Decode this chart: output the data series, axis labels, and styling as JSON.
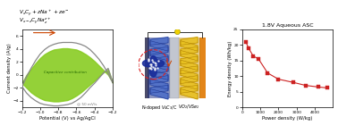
{
  "cv_xlabel": "Potential (V) vs Ag/AgCl",
  "cv_ylabel": "Current density (A/g)",
  "cv_annotation": "@ 50 mV/s",
  "cv_label": "Capacitive contribution",
  "eq1": "$V_xC_y + zNa^+ + ze^-$",
  "eq2": "$V_{x-z}C_yNa_z^{z+}$",
  "cv_xlim": [
    -1.2,
    -0.2
  ],
  "cv_ylim": [
    -5,
    7
  ],
  "cv_xticks": [
    -1.2,
    -1.0,
    -0.8,
    -0.6,
    -0.4,
    -0.2
  ],
  "cv_yticks": [
    -4,
    -2,
    0,
    2,
    4,
    6
  ],
  "cv_x": [
    -1.2,
    -1.15,
    -1.1,
    -1.05,
    -1.0,
    -0.95,
    -0.9,
    -0.85,
    -0.8,
    -0.75,
    -0.7,
    -0.65,
    -0.6,
    -0.55,
    -0.5,
    -0.45,
    -0.4,
    -0.35,
    -0.3,
    -0.25,
    -0.2
  ],
  "cv_y_outer_top": [
    -1.8,
    -0.3,
    1.0,
    2.2,
    3.2,
    3.9,
    4.4,
    4.7,
    4.9,
    5.0,
    5.0,
    5.0,
    4.9,
    4.7,
    4.4,
    3.9,
    3.2,
    2.4,
    1.4,
    0.2,
    -1.2
  ],
  "cv_y_outer_bot": [
    -1.8,
    -2.8,
    -3.5,
    -4.0,
    -4.4,
    -4.6,
    -4.7,
    -4.8,
    -4.8,
    -4.7,
    -4.6,
    -4.4,
    -4.0,
    -3.5,
    -2.8,
    -2.0,
    -1.3,
    -0.5,
    0.3,
    1.0,
    -1.2
  ],
  "cv_y_inner_top": [
    -1.3,
    -0.0,
    0.9,
    1.8,
    2.6,
    3.2,
    3.6,
    3.9,
    4.0,
    4.1,
    4.1,
    4.0,
    3.9,
    3.6,
    3.2,
    2.7,
    2.1,
    1.4,
    0.7,
    0.0,
    -1.2
  ],
  "cv_y_inner_bot": [
    -1.3,
    -2.0,
    -2.7,
    -3.2,
    -3.6,
    -3.9,
    -4.0,
    -4.1,
    -4.1,
    -4.0,
    -3.9,
    -3.6,
    -3.2,
    -2.7,
    -2.1,
    -1.5,
    -0.9,
    -0.2,
    0.4,
    0.8,
    -1.2
  ],
  "ragone_title": "1.8V Aqueous ASC",
  "ragone_xlabel": "Power density (W/kg)",
  "ragone_ylabel": "Energy density (Wh/kg)",
  "ragone_x": [
    200,
    350,
    600,
    900,
    1400,
    2000,
    2800,
    3500,
    4200,
    4700
  ],
  "ragone_y": [
    21.0,
    19.0,
    16.5,
    15.5,
    11.0,
    9.0,
    8.0,
    7.0,
    6.5,
    6.2
  ],
  "ragone_xlim": [
    0,
    5000
  ],
  "ragone_ylim": [
    0,
    25
  ],
  "ragone_xticks": [
    0,
    1000,
    2000,
    3000,
    4000
  ],
  "ragone_yticks": [
    0,
    5,
    10,
    15,
    20,
    25
  ],
  "ragone_color": "#cc2222",
  "label_left": "N-doped $V_4C_3$/C",
  "label_right": "$VO_2$/$VSe_2$",
  "bg_color": "#ffffff",
  "cv_outer_color": "#888888",
  "cv_fill_color": "#88cc22",
  "arrow_color": "#cc4400",
  "blue_electrode_dark": "#1a2d80",
  "blue_electrode_light": "#4a6cc8",
  "yellow_electrode": "#e8c020",
  "orange_collector": "#e07800",
  "gray_separator": "#b8bcc8",
  "blob_color": "#1a2d9a",
  "red_circle_color": "#dd2222",
  "bulb_color": "#f0d000"
}
